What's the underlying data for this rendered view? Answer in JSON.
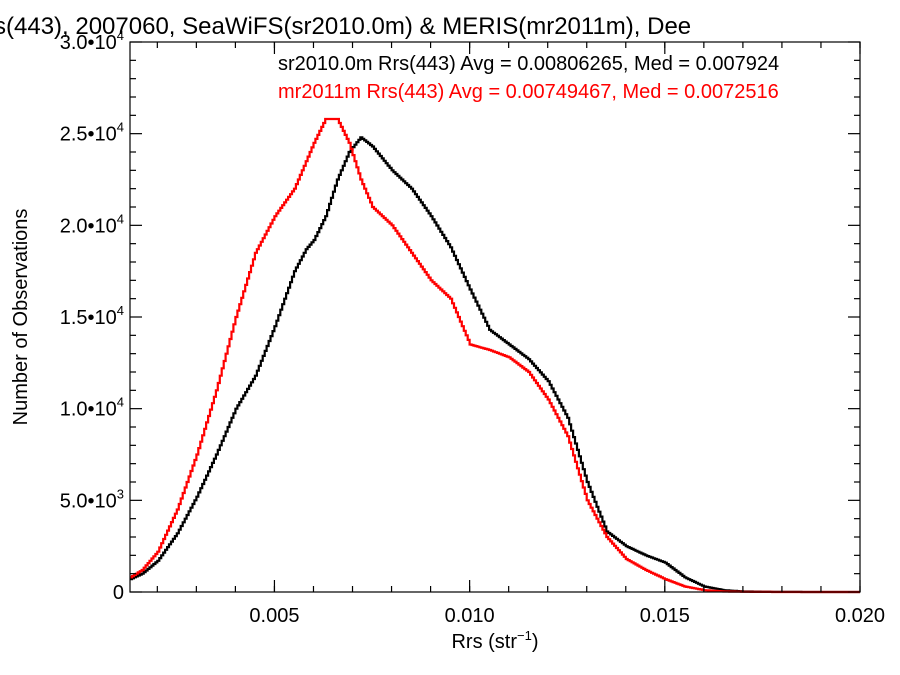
{
  "chart_data": {
    "type": "line",
    "title": "s(443), 2007060, SeaWiFS(sr2010.0m) & MERIS(mr2011m), Dee",
    "xlabel": "Rrs (str",
    "xlabel_sup": "−1",
    "xlabel_close": ")",
    "ylabel": "Number of Observations",
    "xlim": [
      0.0013,
      0.02
    ],
    "ylim": [
      0,
      30000
    ],
    "x_ticks": [
      {
        "value": 0.005,
        "label": "0.005"
      },
      {
        "value": 0.01,
        "label": "0.010"
      },
      {
        "value": 0.015,
        "label": "0.015"
      },
      {
        "value": 0.02,
        "label": "0.020"
      }
    ],
    "y_ticks": [
      {
        "value": 0,
        "mant": "0",
        "exp": ""
      },
      {
        "value": 5000,
        "mant": "5.0•10",
        "exp": "3"
      },
      {
        "value": 10000,
        "mant": "1.0•10",
        "exp": "4"
      },
      {
        "value": 15000,
        "mant": "1.5•10",
        "exp": "4"
      },
      {
        "value": 20000,
        "mant": "2.0•10",
        "exp": "4"
      },
      {
        "value": 25000,
        "mant": "2.5•10",
        "exp": "4"
      },
      {
        "value": 30000,
        "mant": "3.0•10",
        "exp": "4"
      }
    ],
    "series": [
      {
        "name": "sr2010.0m Rrs(443) Avg = 0.00806265, Med = 0.007924",
        "color": "#000000",
        "x": [
          0.0013,
          0.0016,
          0.002,
          0.0025,
          0.003,
          0.0035,
          0.004,
          0.0045,
          0.005,
          0.0055,
          0.0058,
          0.006,
          0.0063,
          0.0066,
          0.0069,
          0.0072,
          0.0075,
          0.008,
          0.0085,
          0.009,
          0.0095,
          0.01,
          0.0105,
          0.011,
          0.0115,
          0.012,
          0.0125,
          0.013,
          0.0135,
          0.014,
          0.0145,
          0.015,
          0.0155,
          0.016,
          0.0165,
          0.017,
          0.018,
          0.019,
          0.02
        ],
        "y": [
          700,
          1000,
          1700,
          3200,
          5200,
          7500,
          10000,
          11800,
          14500,
          17500,
          18700,
          19200,
          20500,
          22500,
          24000,
          24800,
          24300,
          23000,
          22000,
          20500,
          18800,
          16500,
          14300,
          13500,
          12700,
          11500,
          9500,
          6000,
          3300,
          2500,
          2000,
          1600,
          800,
          300,
          100,
          30,
          5,
          0,
          0
        ]
      },
      {
        "name": "mr2011m Rrs(443) Avg = 0.00749467, Med = 0.0072516",
        "color": "#ff0000",
        "x": [
          0.0013,
          0.0016,
          0.002,
          0.0025,
          0.003,
          0.0035,
          0.004,
          0.0045,
          0.005,
          0.0055,
          0.006,
          0.0063,
          0.0066,
          0.0069,
          0.0072,
          0.0075,
          0.008,
          0.0085,
          0.009,
          0.0095,
          0.01,
          0.0105,
          0.011,
          0.0115,
          0.012,
          0.0125,
          0.013,
          0.0135,
          0.014,
          0.0145,
          0.015,
          0.0155,
          0.016,
          0.0165,
          0.017,
          0.018,
          0.02
        ],
        "y": [
          800,
          1200,
          2200,
          4500,
          7500,
          11000,
          15000,
          18500,
          20500,
          22000,
          24500,
          25800,
          25800,
          24500,
          22500,
          21000,
          20000,
          18500,
          17000,
          16000,
          13500,
          13200,
          12800,
          12000,
          10500,
          8500,
          5000,
          3000,
          1800,
          1200,
          700,
          300,
          100,
          30,
          10,
          0,
          0
        ]
      }
    ],
    "grid": false,
    "legend_position": "top-right"
  }
}
